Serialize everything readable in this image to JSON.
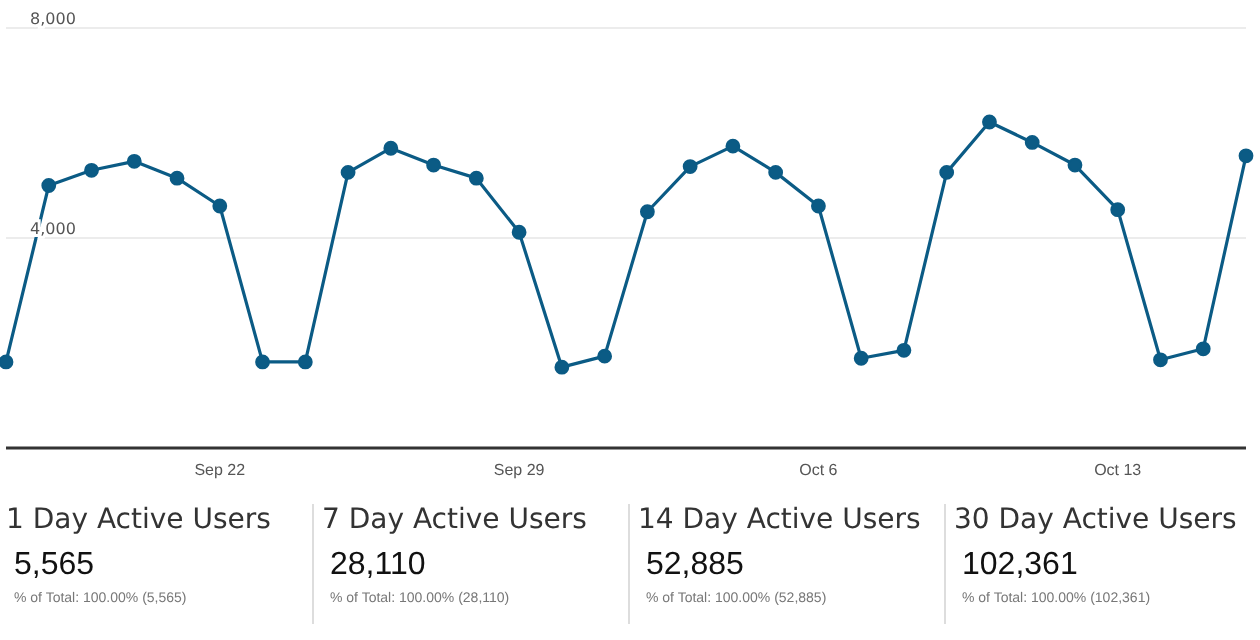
{
  "chart_data": {
    "type": "line",
    "categories": [
      null,
      null,
      null,
      null,
      null,
      "Sep 22",
      null,
      null,
      null,
      null,
      null,
      null,
      "Sep 29",
      null,
      null,
      null,
      null,
      null,
      null,
      "Oct 6",
      null,
      null,
      null,
      null,
      null,
      null,
      "Oct 13",
      null,
      null,
      null
    ],
    "series": [
      {
        "color": "#0b5b85",
        "values": [
          1640,
          5000,
          5290,
          5460,
          5140,
          4610,
          1640,
          1640,
          5250,
          5710,
          5390,
          5140,
          4110,
          1540,
          1750,
          4500,
          5360,
          5750,
          5250,
          4610,
          1710,
          1860,
          5250,
          6210,
          5820,
          5390,
          4540,
          1680,
          1890,
          5565
        ]
      }
    ],
    "ylim": [
      0,
      8000
    ],
    "yticks": [
      {
        "value": 4000,
        "label": "4,000"
      },
      {
        "value": 8000,
        "label": "8,000"
      }
    ],
    "grid": "y",
    "marker": "circle",
    "line_style": "solid",
    "legend": false,
    "annotations": [
      "1 Day Active Users",
      "5,565",
      "% of Total: 100.00% (5,565)",
      "7 Day Active Users",
      "28,110",
      "% of Total: 100.00% (28,110)",
      "14 Day Active Users",
      "52,885",
      "% of Total: 100.00% (52,885)",
      "30 Day Active Users",
      "102,361",
      "% of Total: 100.00% (102,361)"
    ]
  }
}
